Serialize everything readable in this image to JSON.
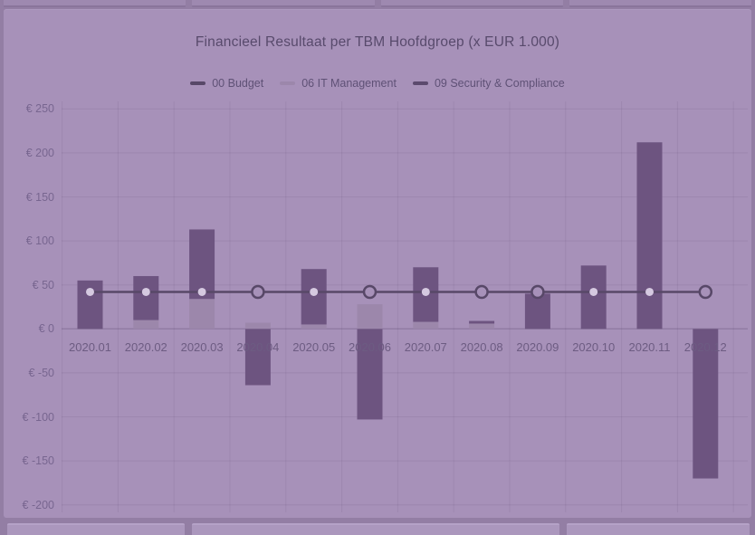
{
  "colors": {
    "page_bg": "#937ea4",
    "card_bg": "#a791b9",
    "grid": "rgba(70,48,92,0.10)",
    "zero_line": "rgba(70,48,92,0.22)",
    "budget_line": "#584868",
    "marker_dot_fill": "#d5c9e0",
    "bar_light": "#9c87ab",
    "bar_dark": "#6d5480"
  },
  "chart_data": {
    "type": "bar+line combo (stacked bars with budget line)",
    "title": "Financieel Resultaat per TBM Hoofdgroep (x EUR 1.000)",
    "xlabel": "",
    "ylabel": "EUR (x 1.000)",
    "ylim": [
      -200,
      250
    ],
    "grid": true,
    "legend_position": "top-center",
    "categories": [
      "2020.01",
      "2020.02",
      "2020.03",
      "2020.04",
      "2020.05",
      "2020.06",
      "2020.07",
      "2020.08",
      "2020.09",
      "2020.10",
      "2020.11",
      "2020.12"
    ],
    "y_tick_values": [
      250,
      200,
      150,
      100,
      50,
      0,
      -50,
      -100,
      -150,
      -200
    ],
    "y_tick_labels": [
      "€ 250",
      "€ 200",
      "€ 150",
      "€ 100",
      "€ 50",
      "€ 0",
      "€ -50",
      "€ -100",
      "€ -150",
      "€ -200"
    ],
    "series": [
      {
        "name": "00 Budget",
        "type": "line",
        "color": "#584868",
        "values": [
          42,
          42,
          42,
          42,
          42,
          42,
          42,
          42,
          42,
          42,
          42,
          42
        ],
        "marker_styles": [
          "dot",
          "dot",
          "dot",
          "ring",
          "dot",
          "ring",
          "dot",
          "ring",
          "ring",
          "dot",
          "dot",
          "ring"
        ]
      },
      {
        "name": "06 IT Management",
        "type": "bar",
        "color": "#9c87ab",
        "values": [
          0,
          10,
          34,
          7,
          5,
          28,
          8,
          6,
          0,
          0,
          0,
          0
        ]
      },
      {
        "name": "09 Security & Compliance",
        "type": "bar",
        "color": "#6d5480",
        "values": [
          55,
          50,
          79,
          -64,
          63,
          -103,
          62,
          3,
          40,
          72,
          212,
          -170
        ]
      }
    ]
  }
}
